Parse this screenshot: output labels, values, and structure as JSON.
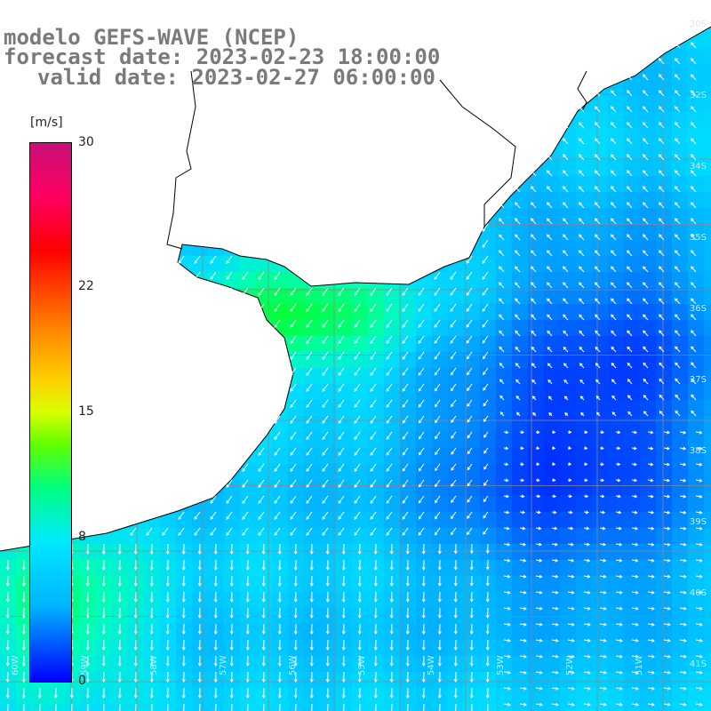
{
  "titles": {
    "line1": "modelo GEFS-WAVE (NCEP)",
    "line2": "forecast date: 2023-02-23 18:00:00",
    "line3": "valid date: 2023-02-27 06:00:00"
  },
  "colorbar": {
    "unit": "[m/s]",
    "ticks": [
      {
        "label": "30",
        "value": 30
      },
      {
        "label": "22",
        "value": 22
      },
      {
        "label": "15",
        "value": 15
      },
      {
        "label": "8",
        "value": 8
      },
      {
        "label": "0",
        "value": 0
      }
    ],
    "min": 0,
    "max": 30
  },
  "map": {
    "lat_labels": [
      "30S",
      "32S",
      "34S",
      "35S",
      "36S",
      "37S",
      "38S",
      "39S",
      "40S",
      "41S"
    ],
    "lon_labels": [
      "60W",
      "59W",
      "58W",
      "57W",
      "56W",
      "55W",
      "54W",
      "53W",
      "52W",
      "51W"
    ],
    "colors": {
      "land": "#ffffff",
      "coast": "#000000",
      "grid": "#8a8a8a",
      "arrow": "#ffffff"
    }
  }
}
